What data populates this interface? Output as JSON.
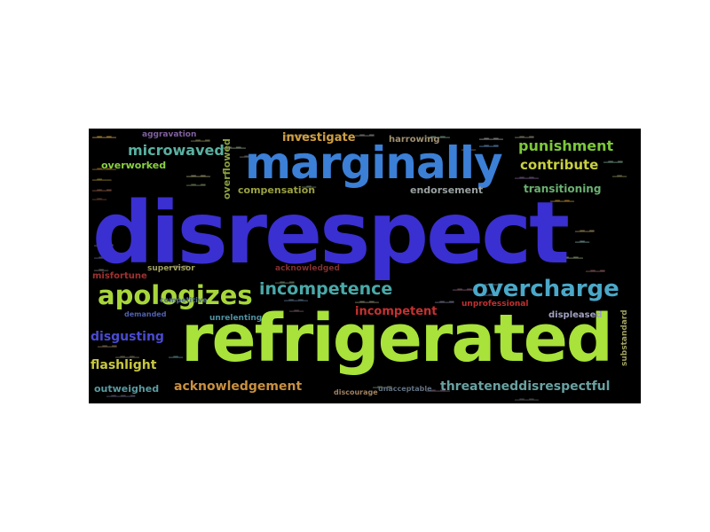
{
  "cloud": {
    "background": "#000000",
    "big_words": {
      "disrespect": {
        "text": "disrespect",
        "color": "#3a2fd0"
      },
      "refrigerated": {
        "text": "refrigerated",
        "color": "#a8e23a"
      },
      "marginally": {
        "text": "marginally",
        "color": "#3b7fd6"
      }
    },
    "medium_words": {
      "apologizes": {
        "text": "apologizes",
        "color": "#a8d63a"
      },
      "overcharge": {
        "text": "overcharge",
        "color": "#4aa8c8"
      },
      "incompetence": {
        "text": "incompetence",
        "color": "#4aa8a8"
      },
      "microwaved": {
        "text": "microwaved",
        "color": "#5ab0a0"
      },
      "punishment": {
        "text": "punishment",
        "color": "#7cc83a"
      },
      "contribute": {
        "text": "contribute",
        "color": "#c8d040"
      },
      "investigate": {
        "text": "investigate",
        "color": "#d0a040"
      },
      "incompetent": {
        "text": "incompetent",
        "color": "#c83030"
      },
      "acknowledgement": {
        "text": "acknowledgement",
        "color": "#c89040"
      },
      "threatened_disrespectful": {
        "text": "threateneddisrespectful",
        "color": "#6aa0a0"
      },
      "disgusting": {
        "text": "disgusting",
        "color": "#4a4ad0"
      },
      "flashlight": {
        "text": "flashlight",
        "color": "#c8c840"
      },
      "outweighed": {
        "text": "outweighed",
        "color": "#5a9aa0"
      },
      "overworked": {
        "text": "overworked",
        "color": "#8ad040"
      },
      "compensation": {
        "text": "compensation",
        "color": "#9aa040"
      },
      "endorsement": {
        "text": "endorsement",
        "color": "#9aa0a0"
      },
      "transitioning": {
        "text": "transitioning",
        "color": "#6ab070"
      },
      "overflowed": {
        "text": "overflowed",
        "color": "#8aa040"
      },
      "harrowing": {
        "text": "harrowing",
        "color": "#a09070"
      },
      "supervisor": {
        "text": "supervisor",
        "color": "#a0a060"
      },
      "misfortune": {
        "text": "misfortune",
        "color": "#a03030"
      },
      "aggravation": {
        "text": "aggravation",
        "color": "#8060a0"
      },
      "displeased": {
        "text": "displeased",
        "color": "#a0a0c0"
      },
      "unprofessional": {
        "text": "unprofessional",
        "color": "#c03030"
      },
      "acknowledged": {
        "text": "acknowledged",
        "color": "#803030"
      },
      "unacceptable": {
        "text": "unacceptable",
        "color": "#607080"
      },
      "unrelenting": {
        "text": "unrelenting",
        "color": "#5090a0"
      },
      "substandard": {
        "text": "substandard",
        "color": "#a0a060"
      },
      "discourage": {
        "text": "discourage",
        "color": "#a08060"
      },
      "demanded": {
        "text": "demanded",
        "color": "#5060b0"
      },
      "competitive": {
        "text": "competitive",
        "color": "#507090"
      }
    }
  }
}
